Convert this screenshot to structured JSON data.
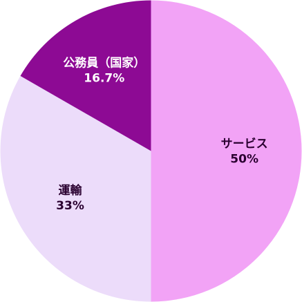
{
  "chart_data": {
    "type": "pie",
    "slices": [
      {
        "label": "サービス",
        "value_label": "50%",
        "value": 50,
        "color": "#f2a3f6",
        "label_color": "#2a0030"
      },
      {
        "label": "運輸",
        "value_label": "33%",
        "value": 33.3,
        "color": "#ecdcfa",
        "label_color": "#2a0030"
      },
      {
        "label": "公務員（国家）",
        "value_label": "16.7%",
        "value": 16.7,
        "color": "#8d0a94",
        "label_color": "#ffffff"
      }
    ],
    "start": "top",
    "direction": "clockwise",
    "legend": "none"
  }
}
